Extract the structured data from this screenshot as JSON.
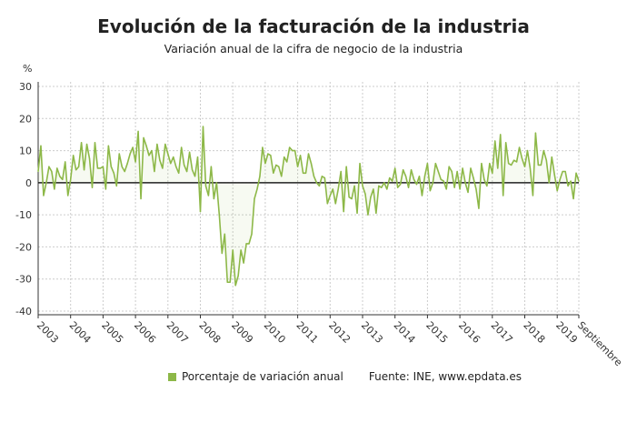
{
  "chart_data": {
    "type": "line",
    "title": "Evolución de la facturación de la industria",
    "subtitle": "Variación anual de la cifra de negocio de la industria",
    "ylabel": "%",
    "ylim": [
      -40,
      30
    ],
    "yticks": [
      30,
      20,
      10,
      0,
      -10,
      -20,
      -30,
      -40
    ],
    "xticks": [
      "2003",
      "2004",
      "2005",
      "2006",
      "2007",
      "2008",
      "2009",
      "2010",
      "2011",
      "2012",
      "2013",
      "2014",
      "2015",
      "2016",
      "2017",
      "2018",
      "2019",
      "Septiembre"
    ],
    "grid": true,
    "legend_position": "bottom",
    "series": [
      {
        "name": "Porcentaje de variación anual",
        "color": "#8db848",
        "monthly_values_by_year": {
          "2003": [
            3.5,
            11.5,
            -4,
            0,
            5,
            3.5,
            -2,
            4.5,
            2,
            1,
            6.5,
            -4
          ],
          "2004": [
            1,
            8.5,
            4,
            5,
            12.5,
            4,
            12,
            7.5,
            -1.5,
            12.5,
            4.5,
            4.5
          ],
          "2005": [
            5,
            -2,
            11.5,
            5,
            3,
            -1,
            9,
            5,
            3.5,
            6,
            9,
            11
          ],
          "2006": [
            6.5,
            16,
            -5,
            14,
            11.5,
            8.5,
            10,
            3.5,
            12,
            7,
            4.5,
            12
          ],
          "2007": [
            9,
            6,
            8,
            5,
            3,
            11,
            5.5,
            3.5,
            9.5,
            4,
            2,
            8
          ],
          "2008": [
            -9,
            17.5,
            -1,
            -4,
            5,
            -5,
            0,
            -10,
            -22,
            -16,
            -31,
            -31
          ],
          "2009": [
            -21,
            -32,
            -29,
            -21,
            -25,
            -19,
            -19,
            -16,
            -5,
            -2,
            2,
            11
          ],
          "2010": [
            6,
            9,
            8.5,
            3,
            5.5,
            5,
            2,
            8,
            6.5,
            11,
            10,
            10
          ],
          "2011": [
            5,
            8.5,
            3,
            3,
            9,
            6,
            2,
            0,
            -1,
            2,
            1.5,
            -6.5
          ],
          "2012": [
            -4,
            -2,
            -6.5,
            -2,
            3.5,
            -9,
            5,
            -4.5,
            -5,
            -1,
            -9.5,
            6
          ],
          "2013": [
            -1,
            -3.5,
            -10,
            -4.5,
            -2,
            -9.5,
            -1,
            -1.5,
            0,
            -2,
            1.5,
            0.5
          ],
          "2014": [
            4.5,
            -1.5,
            -0.5,
            4,
            2,
            -1.5,
            4,
            1,
            -0.5,
            2,
            -4,
            2
          ],
          "2015": [
            6,
            -2.5,
            0,
            6,
            3.5,
            1,
            0.5,
            -2,
            5,
            3.5,
            -1.5,
            3.5
          ],
          "2016": [
            -2,
            4.5,
            0,
            -3,
            4.5,
            1.5,
            -2,
            -8,
            6,
            1,
            -1,
            6
          ],
          "2017": [
            3,
            13,
            4.5,
            15,
            -4,
            12.5,
            6,
            5.5,
            7,
            6.5,
            11,
            7.5
          ],
          "2018": [
            5,
            10,
            4.5,
            -4,
            15.5,
            5.5,
            5.5,
            10,
            7,
            0,
            8,
            2.5
          ],
          "2019": [
            -2.5,
            1,
            3.5,
            3.5,
            -1,
            0.5,
            -5,
            3,
            0.5
          ]
        }
      }
    ]
  },
  "legend": {
    "label": "Porcentaje de variación anual",
    "source": "Fuente: INE, www.epdata.es"
  }
}
